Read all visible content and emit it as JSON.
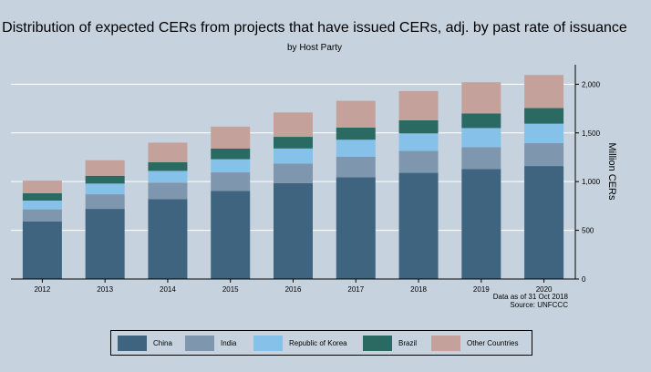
{
  "chart_data": {
    "type": "bar",
    "stacked": true,
    "title": "Distribution of expected CERs from projects that have issued CERs, adj. by past rate of issuance",
    "subtitle": "by Host Party",
    "ylabel": "Million CERs",
    "y_axis_side": "right",
    "ylim": [
      0,
      2200
    ],
    "yticks": [
      0,
      500,
      1000,
      1500,
      2000
    ],
    "ytick_labels": [
      "0",
      "500",
      "1,000",
      "1,500",
      "2,000"
    ],
    "grid": true,
    "legend_placement": "bottom",
    "categories": [
      "2012",
      "2013",
      "2014",
      "2015",
      "2016",
      "2017",
      "2018",
      "2019",
      "2020"
    ],
    "series": [
      {
        "name": "China",
        "color": "#3e6480",
        "values": [
          590,
          720,
          820,
          905,
          985,
          1045,
          1090,
          1130,
          1160
        ]
      },
      {
        "name": "India",
        "color": "#7f97ae",
        "values": [
          125,
          150,
          170,
          190,
          200,
          210,
          225,
          225,
          235
        ]
      },
      {
        "name": "Republic of Korea",
        "color": "#86c1ea",
        "values": [
          90,
          110,
          120,
          135,
          155,
          175,
          180,
          195,
          200
        ]
      },
      {
        "name": "Brazil",
        "color": "#2b6a63",
        "values": [
          75,
          80,
          90,
          110,
          120,
          125,
          135,
          150,
          160
        ]
      },
      {
        "name": "Other Countries",
        "color": "#c4a29b",
        "values": [
          130,
          160,
          200,
          225,
          250,
          275,
          300,
          320,
          340
        ]
      }
    ],
    "annotations": [
      "Data as of 31 Oct 2018",
      "Source: UNFCCC"
    ]
  }
}
